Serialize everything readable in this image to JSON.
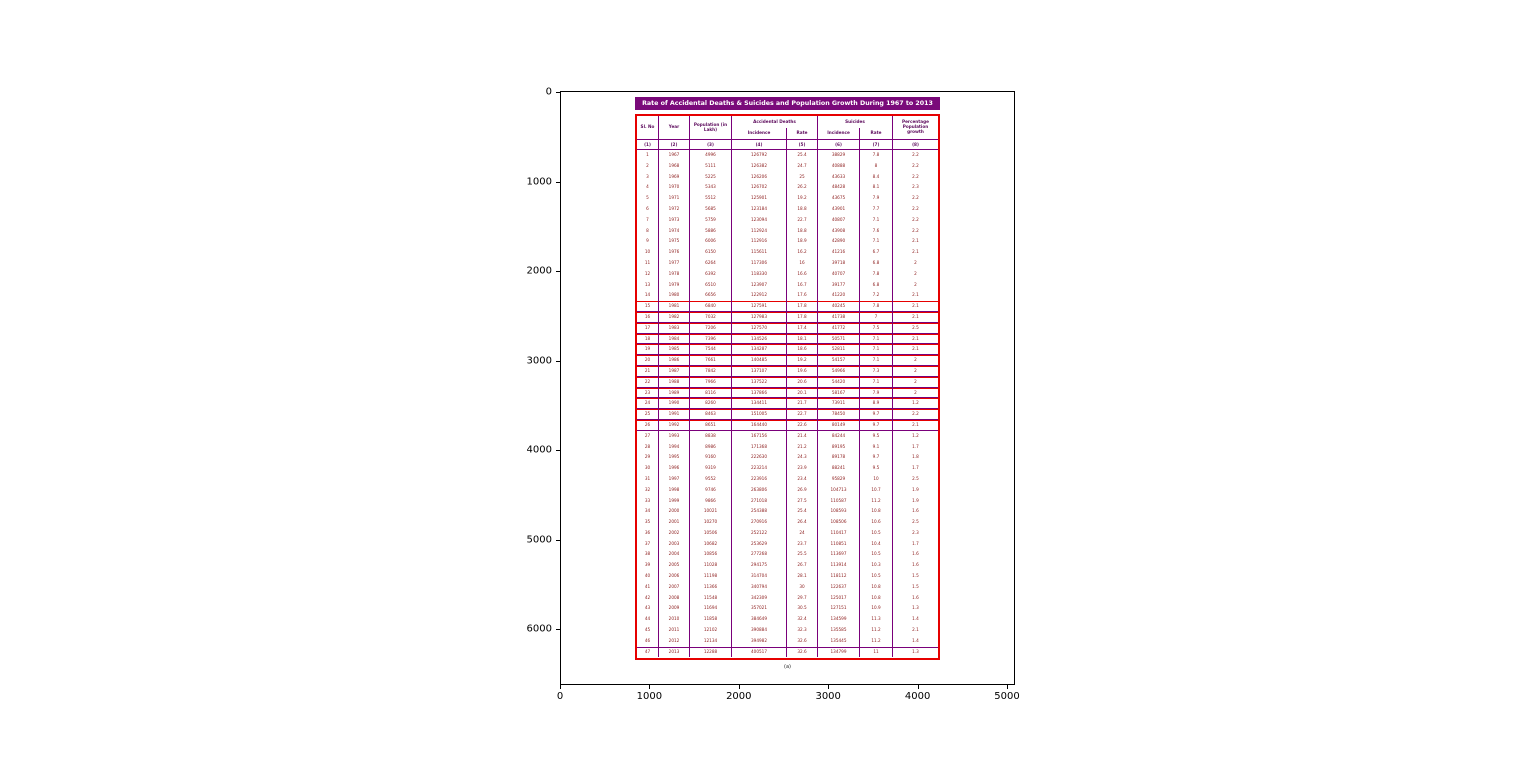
{
  "colors": {
    "title_bar": "#7a0a7a",
    "table_border": "#e60000",
    "grid_line": "#7a007a",
    "header_text": "#5c0a5c",
    "data_text": "#8b1a1a"
  },
  "document": {
    "title": "Rate of Accidental Deaths & Suicides and Population Growth During 1967 to 2013",
    "caption": "(a)",
    "header": {
      "sl_no": "Sl. No",
      "year": "Year",
      "population": "Population (in Lakh)",
      "accidental_deaths": "Accidental Deaths",
      "suicides": "Suicides",
      "incidence": "Incidence",
      "rate": "Rate",
      "incidence2": "Incidence",
      "rate2": "Rate",
      "growth": "Percentage Population growth",
      "col_numbers": [
        "(1)",
        "(2)",
        "(3)",
        "(4)",
        "(5)",
        "(6)",
        "(7)",
        "(8)"
      ]
    }
  },
  "chart_data": {
    "type": "table",
    "title": "Rate of Accidental Deaths & Suicides and Population Growth During 1967 to 2013",
    "x_ticks": [
      "0",
      "1000",
      "2000",
      "3000",
      "4000",
      "5000"
    ],
    "y_ticks": [
      "0",
      "1000",
      "2000",
      "3000",
      "4000",
      "5000",
      "6000"
    ],
    "columns": [
      "Sl. No",
      "Year",
      "Population (in Lakh)",
      "Accidental Deaths Incidence",
      "Accidental Deaths Rate",
      "Suicides Incidence",
      "Suicides Rate",
      "Percentage Population growth"
    ],
    "highlight_from": 15,
    "highlight_to": 26,
    "rows": [
      [
        1,
        1967,
        4996,
        126792,
        25.4,
        38829,
        7.8,
        2.2
      ],
      [
        2,
        1968,
        5111,
        126382,
        24.7,
        40888,
        8.0,
        2.2
      ],
      [
        3,
        1969,
        5225,
        126206,
        25.0,
        43633,
        8.4,
        2.2
      ],
      [
        4,
        1970,
        5343,
        126702,
        26.2,
        48428,
        8.1,
        2.3
      ],
      [
        5,
        1971,
        5512,
        125901,
        19.2,
        43675,
        7.9,
        2.2
      ],
      [
        6,
        1972,
        5685,
        123184,
        18.8,
        43901,
        7.7,
        2.2
      ],
      [
        7,
        1973,
        5759,
        123094,
        22.7,
        40807,
        7.1,
        2.2
      ],
      [
        8,
        1974,
        5886,
        112924,
        18.8,
        43908,
        7.6,
        2.2
      ],
      [
        9,
        1975,
        6006,
        112916,
        18.9,
        42890,
        7.1,
        2.1
      ],
      [
        10,
        1976,
        6150,
        115611,
        16.2,
        41216,
        6.7,
        2.1
      ],
      [
        11,
        1977,
        6264,
        117306,
        16.0,
        39718,
        6.8,
        2.0
      ],
      [
        12,
        1978,
        6392,
        118330,
        16.6,
        40707,
        7.8,
        2.0
      ],
      [
        13,
        1979,
        6510,
        123907,
        16.7,
        39177,
        6.8,
        2.0
      ],
      [
        14,
        1980,
        6656,
        122912,
        17.6,
        41220,
        7.2,
        2.1
      ],
      [
        15,
        1981,
        6840,
        127591,
        17.8,
        40245,
        7.8,
        2.1
      ],
      [
        16,
        1982,
        7032,
        127983,
        17.8,
        41738,
        7.0,
        2.1
      ],
      [
        17,
        1983,
        7206,
        127570,
        17.4,
        41772,
        7.5,
        2.5
      ],
      [
        18,
        1984,
        7396,
        134526,
        18.1,
        50571,
        7.1,
        2.1
      ],
      [
        19,
        1985,
        7544,
        134287,
        18.6,
        52811,
        7.1,
        2.1
      ],
      [
        20,
        1986,
        7661,
        140485,
        19.2,
        54157,
        7.1,
        2.0
      ],
      [
        21,
        1987,
        7842,
        137107,
        19.6,
        54966,
        7.3,
        2.0
      ],
      [
        22,
        1988,
        7966,
        137522,
        20.6,
        54420,
        7.1,
        2.0
      ],
      [
        23,
        1989,
        8116,
        137866,
        20.1,
        58167,
        7.9,
        2.0
      ],
      [
        24,
        1990,
        8260,
        134411,
        21.7,
        73911,
        8.9,
        1.2
      ],
      [
        25,
        1991,
        8463,
        151005,
        22.7,
        78450,
        9.7,
        2.2
      ],
      [
        26,
        1992,
        8651,
        164440,
        22.6,
        80149,
        9.7,
        2.1
      ],
      [
        27,
        1993,
        8838,
        167156,
        21.4,
        84244,
        9.5,
        1.2
      ],
      [
        28,
        1994,
        8986,
        171368,
        21.2,
        89195,
        9.1,
        1.7
      ],
      [
        29,
        1995,
        9160,
        222630,
        24.3,
        89178,
        9.7,
        1.8
      ],
      [
        30,
        1996,
        9319,
        223214,
        23.9,
        88241,
        9.5,
        1.7
      ],
      [
        31,
        1997,
        9552,
        223916,
        23.4,
        95829,
        10.0,
        2.5
      ],
      [
        32,
        1998,
        9746,
        263806,
        26.9,
        104713,
        10.7,
        1.9
      ],
      [
        33,
        1999,
        9866,
        271018,
        27.5,
        110587,
        11.2,
        1.9
      ],
      [
        34,
        2000,
        10021,
        254388,
        25.4,
        108593,
        10.8,
        1.6
      ],
      [
        35,
        2001,
        10270,
        270916,
        26.4,
        108506,
        10.6,
        2.5
      ],
      [
        36,
        2002,
        10506,
        252122,
        24.0,
        110417,
        10.5,
        2.3
      ],
      [
        37,
        2003,
        10682,
        253629,
        23.7,
        110851,
        10.4,
        1.7
      ],
      [
        38,
        2004,
        10856,
        277268,
        25.5,
        113697,
        10.5,
        1.6
      ],
      [
        39,
        2005,
        11028,
        294175,
        26.7,
        113914,
        10.3,
        1.6
      ],
      [
        40,
        2006,
        11198,
        314704,
        28.1,
        118112,
        10.5,
        1.5
      ],
      [
        41,
        2007,
        11366,
        340794,
        30.0,
        122637,
        10.8,
        1.5
      ],
      [
        42,
        2008,
        11548,
        342309,
        29.7,
        125017,
        10.8,
        1.6
      ],
      [
        43,
        2009,
        11694,
        357021,
        30.5,
        127151,
        10.9,
        1.3
      ],
      [
        44,
        2010,
        11858,
        384649,
        32.4,
        134599,
        11.3,
        1.4
      ],
      [
        45,
        2011,
        12102,
        390884,
        32.3,
        135585,
        11.2,
        2.1
      ],
      [
        46,
        2012,
        12134,
        394982,
        32.6,
        135445,
        11.2,
        1.4
      ],
      [
        47,
        2013,
        12288,
        400517,
        32.6,
        134799,
        11.0,
        1.3
      ]
    ]
  }
}
